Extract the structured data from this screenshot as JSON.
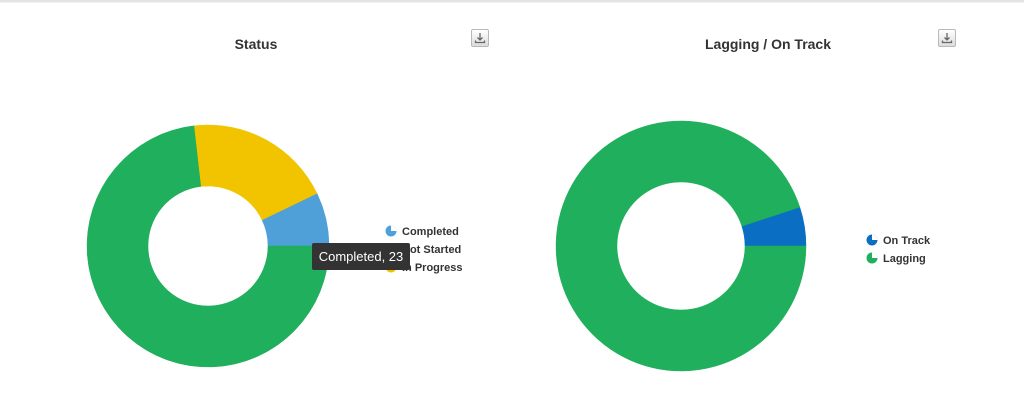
{
  "chart_data": [
    {
      "type": "pie",
      "donut": true,
      "title": "Status",
      "categories": [
        "Completed",
        "Not Started",
        "In Progress"
      ],
      "values": [
        23,
        235,
        63
      ],
      "colors": [
        "#4f9fd8",
        "#1faf5d",
        "#f2c400"
      ],
      "legend": "right",
      "tooltip": "Completed, 23",
      "tooltip_index": 0
    },
    {
      "type": "pie",
      "donut": true,
      "title": "Lagging / On Track",
      "categories": [
        "On Track",
        "Lagging"
      ],
      "values": [
        17,
        321
      ],
      "colors": [
        "#0a6fc2",
        "#1faf5d"
      ],
      "legend": "right"
    }
  ],
  "icons": {
    "export": "download-icon"
  }
}
